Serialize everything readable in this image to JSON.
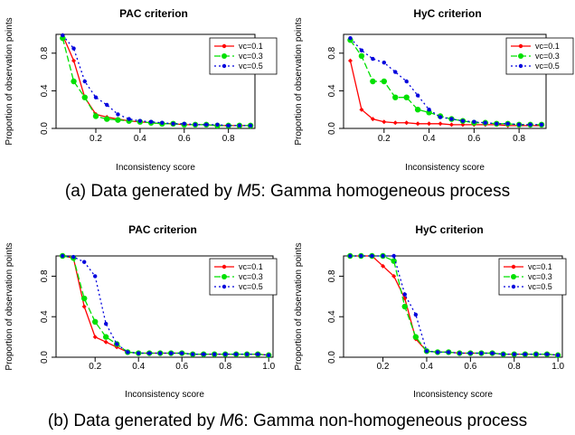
{
  "captions": {
    "a": {
      "prefix": "(a) Data generated by ",
      "model": "M",
      "num": "5",
      "suffix": ": Gamma homogeneous process"
    },
    "b": {
      "prefix": "(b) Data generated by ",
      "model": "M",
      "num": "6",
      "suffix": ": Gamma non-homogeneous process"
    }
  },
  "colors": {
    "vc01": "#ff0000",
    "vc03": "#00e000",
    "vc05": "#0000dd"
  },
  "chart_data": [
    {
      "id": "a-pac",
      "type": "line",
      "title": "PAC criterion",
      "xlabel": "Inconsistency score",
      "ylabel": "Proportion of observation points",
      "xlim": [
        0.02,
        0.92
      ],
      "ylim": [
        0,
        1
      ],
      "xticks": [
        0.2,
        0.4,
        0.6,
        0.8
      ],
      "yticks": [
        0.0,
        0.4,
        0.8
      ],
      "x": [
        0.05,
        0.1,
        0.15,
        0.2,
        0.25,
        0.3,
        0.35,
        0.4,
        0.45,
        0.5,
        0.55,
        0.6,
        0.65,
        0.7,
        0.75,
        0.8,
        0.85,
        0.9
      ],
      "series": [
        {
          "name": "vc=0.1",
          "values": [
            0.99,
            0.72,
            0.33,
            0.15,
            0.12,
            0.1,
            0.08,
            0.07,
            0.06,
            0.05,
            0.05,
            0.04,
            0.04,
            0.04,
            0.03,
            0.03,
            0.03,
            0.03
          ]
        },
        {
          "name": "vc=0.3",
          "values": [
            0.96,
            0.5,
            0.33,
            0.13,
            0.1,
            0.09,
            0.08,
            0.07,
            0.06,
            0.05,
            0.05,
            0.04,
            0.04,
            0.04,
            0.03,
            0.03,
            0.03,
            0.03
          ]
        },
        {
          "name": "vc=0.5",
          "values": [
            0.99,
            0.85,
            0.5,
            0.33,
            0.25,
            0.15,
            0.1,
            0.08,
            0.07,
            0.06,
            0.05,
            0.05,
            0.04,
            0.04,
            0.04,
            0.03,
            0.03,
            0.03
          ]
        }
      ]
    },
    {
      "id": "a-hyc",
      "type": "line",
      "title": "HyC criterion",
      "xlabel": "Inconsistency score",
      "ylabel": "Proportion of observation points",
      "xlim": [
        0.02,
        0.92
      ],
      "ylim": [
        0,
        1
      ],
      "xticks": [
        0.2,
        0.4,
        0.6,
        0.8
      ],
      "yticks": [
        0.0,
        0.4,
        0.8
      ],
      "x": [
        0.05,
        0.1,
        0.15,
        0.2,
        0.25,
        0.3,
        0.35,
        0.4,
        0.45,
        0.5,
        0.55,
        0.6,
        0.65,
        0.7,
        0.75,
        0.8,
        0.85,
        0.9
      ],
      "series": [
        {
          "name": "vc=0.1",
          "values": [
            0.72,
            0.2,
            0.1,
            0.07,
            0.06,
            0.06,
            0.05,
            0.05,
            0.05,
            0.04,
            0.04,
            0.04,
            0.04,
            0.04,
            0.03,
            0.03,
            0.03,
            0.03
          ]
        },
        {
          "name": "vc=0.3",
          "values": [
            0.94,
            0.77,
            0.5,
            0.5,
            0.33,
            0.33,
            0.2,
            0.17,
            0.13,
            0.1,
            0.08,
            0.06,
            0.06,
            0.05,
            0.05,
            0.04,
            0.04,
            0.04
          ]
        },
        {
          "name": "vc=0.5",
          "values": [
            0.96,
            0.83,
            0.74,
            0.7,
            0.6,
            0.5,
            0.35,
            0.2,
            0.12,
            0.1,
            0.08,
            0.07,
            0.06,
            0.05,
            0.05,
            0.04,
            0.04,
            0.04
          ]
        }
      ]
    },
    {
      "id": "b-pac",
      "type": "line",
      "title": "PAC criterion",
      "xlabel": "Inconsistency score",
      "ylabel": "Proportion of observation points",
      "xlim": [
        0.02,
        1.02
      ],
      "ylim": [
        0,
        1
      ],
      "xticks": [
        0.2,
        0.4,
        0.6,
        0.8,
        1.0
      ],
      "yticks": [
        0.0,
        0.4,
        0.8
      ],
      "x": [
        0.05,
        0.1,
        0.15,
        0.2,
        0.25,
        0.3,
        0.35,
        0.4,
        0.45,
        0.5,
        0.55,
        0.6,
        0.65,
        0.7,
        0.75,
        0.8,
        0.85,
        0.9,
        0.95,
        1.0
      ],
      "series": [
        {
          "name": "vc=0.1",
          "values": [
            1.0,
            0.98,
            0.5,
            0.2,
            0.15,
            0.1,
            0.05,
            0.04,
            0.04,
            0.04,
            0.04,
            0.04,
            0.03,
            0.03,
            0.03,
            0.03,
            0.03,
            0.03,
            0.03,
            0.02
          ]
        },
        {
          "name": "vc=0.3",
          "values": [
            1.0,
            0.98,
            0.58,
            0.35,
            0.2,
            0.13,
            0.05,
            0.04,
            0.04,
            0.04,
            0.04,
            0.04,
            0.03,
            0.03,
            0.03,
            0.03,
            0.03,
            0.03,
            0.03,
            0.02
          ]
        },
        {
          "name": "vc=0.5",
          "values": [
            1.0,
            0.99,
            0.94,
            0.8,
            0.33,
            0.13,
            0.05,
            0.04,
            0.04,
            0.04,
            0.04,
            0.04,
            0.03,
            0.03,
            0.03,
            0.03,
            0.03,
            0.03,
            0.03,
            0.02
          ]
        }
      ]
    },
    {
      "id": "b-hyc",
      "type": "line",
      "title": "HyC criterion",
      "xlabel": "Inconsistency score",
      "ylabel": "Proportion of observation points",
      "xlim": [
        0.02,
        1.02
      ],
      "ylim": [
        0,
        1
      ],
      "xticks": [
        0.2,
        0.4,
        0.6,
        0.8,
        1.0
      ],
      "yticks": [
        0.0,
        0.4,
        0.8
      ],
      "x": [
        0.05,
        0.1,
        0.15,
        0.2,
        0.25,
        0.3,
        0.35,
        0.4,
        0.45,
        0.5,
        0.55,
        0.6,
        0.65,
        0.7,
        0.75,
        0.8,
        0.85,
        0.9,
        0.95,
        1.0
      ],
      "series": [
        {
          "name": "vc=0.1",
          "values": [
            1.0,
            1.0,
            1.0,
            0.9,
            0.8,
            0.58,
            0.18,
            0.06,
            0.05,
            0.05,
            0.04,
            0.04,
            0.04,
            0.04,
            0.03,
            0.03,
            0.03,
            0.03,
            0.03,
            0.02
          ]
        },
        {
          "name": "vc=0.3",
          "values": [
            1.0,
            1.0,
            1.0,
            1.0,
            0.95,
            0.5,
            0.2,
            0.06,
            0.05,
            0.05,
            0.04,
            0.04,
            0.04,
            0.04,
            0.03,
            0.03,
            0.03,
            0.03,
            0.03,
            0.02
          ]
        },
        {
          "name": "vc=0.5",
          "values": [
            1.0,
            1.0,
            1.0,
            1.0,
            1.0,
            0.62,
            0.42,
            0.06,
            0.05,
            0.05,
            0.04,
            0.04,
            0.04,
            0.04,
            0.03,
            0.03,
            0.03,
            0.03,
            0.03,
            0.02
          ]
        }
      ]
    }
  ]
}
